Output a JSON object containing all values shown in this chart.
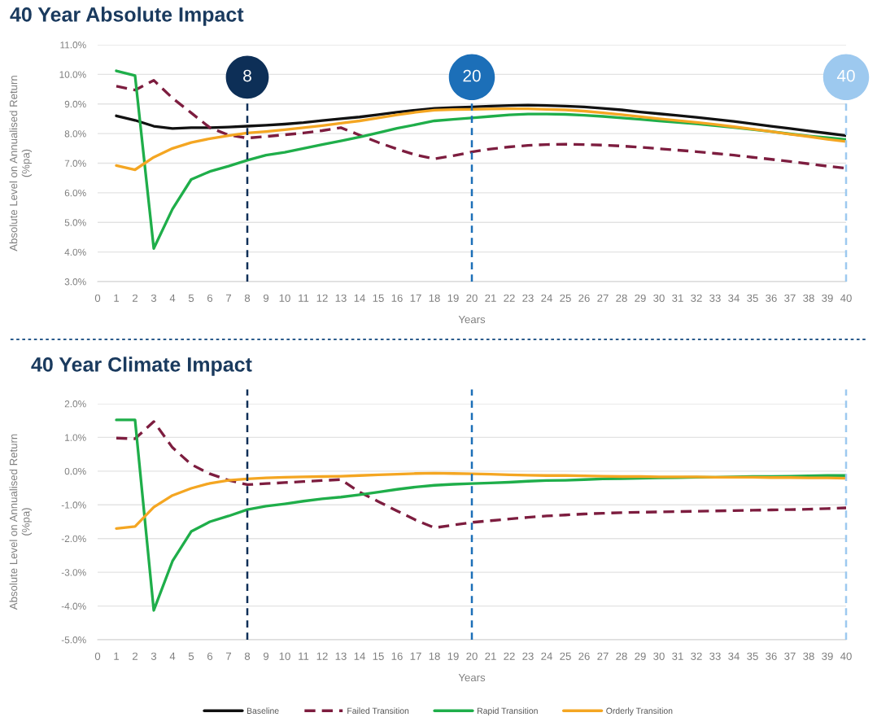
{
  "chart_data": [
    {
      "type": "line",
      "title": "40 Year Absolute Impact",
      "xlabel": "Years",
      "ylabel": "Absolute Level on Annualised Return\n(%pa)",
      "x": [
        1,
        2,
        3,
        4,
        5,
        6,
        7,
        8,
        9,
        10,
        11,
        12,
        13,
        14,
        15,
        16,
        17,
        18,
        19,
        20,
        21,
        22,
        23,
        24,
        25,
        26,
        27,
        28,
        29,
        30,
        31,
        32,
        33,
        34,
        35,
        36,
        37,
        38,
        39,
        40
      ],
      "series": [
        {
          "name": "Baseline",
          "color": "#111111",
          "line_style": "solid",
          "values": [
            8.6,
            8.45,
            8.25,
            8.17,
            8.2,
            8.2,
            8.22,
            8.25,
            8.28,
            8.32,
            8.37,
            8.44,
            8.5,
            8.56,
            8.64,
            8.72,
            8.79,
            8.85,
            8.88,
            8.9,
            8.93,
            8.95,
            8.96,
            8.95,
            8.93,
            8.9,
            8.85,
            8.8,
            8.73,
            8.67,
            8.61,
            8.55,
            8.48,
            8.41,
            8.33,
            8.25,
            8.17,
            8.09,
            8.01,
            7.93
          ]
        },
        {
          "name": "Failed Transition",
          "color": "#7d1d3f",
          "line_style": "dashed",
          "values": [
            9.6,
            9.47,
            9.8,
            9.2,
            8.7,
            8.2,
            7.95,
            7.85,
            7.9,
            7.96,
            8.02,
            8.1,
            8.2,
            7.95,
            7.7,
            7.48,
            7.28,
            7.15,
            7.25,
            7.38,
            7.48,
            7.55,
            7.6,
            7.63,
            7.64,
            7.63,
            7.61,
            7.58,
            7.54,
            7.49,
            7.44,
            7.39,
            7.33,
            7.27,
            7.2,
            7.13,
            7.06,
            6.98,
            6.9,
            6.83
          ]
        },
        {
          "name": "Rapid Transition",
          "color": "#1fae4a",
          "line_style": "solid",
          "values": [
            10.12,
            9.96,
            4.12,
            5.45,
            6.45,
            6.72,
            6.9,
            7.1,
            7.27,
            7.37,
            7.5,
            7.63,
            7.75,
            7.88,
            8.03,
            8.18,
            8.3,
            8.43,
            8.48,
            8.53,
            8.58,
            8.63,
            8.66,
            8.66,
            8.65,
            8.62,
            8.58,
            8.53,
            8.48,
            8.43,
            8.38,
            8.33,
            8.27,
            8.21,
            8.14,
            8.07,
            7.99,
            7.92,
            7.86,
            7.8
          ]
        },
        {
          "name": "Orderly Transition",
          "color": "#f4a622",
          "line_style": "solid",
          "values": [
            6.92,
            6.78,
            7.2,
            7.5,
            7.7,
            7.83,
            7.93,
            8.02,
            8.07,
            8.13,
            8.2,
            8.27,
            8.35,
            8.43,
            8.53,
            8.63,
            8.72,
            8.79,
            8.81,
            8.82,
            8.83,
            8.84,
            8.84,
            8.82,
            8.8,
            8.76,
            8.7,
            8.64,
            8.57,
            8.5,
            8.44,
            8.38,
            8.31,
            8.23,
            8.15,
            8.07,
            7.98,
            7.9,
            7.81,
            7.73
          ]
        }
      ],
      "xlim": [
        0,
        40
      ],
      "xticks": [
        0,
        1,
        2,
        3,
        4,
        5,
        6,
        7,
        8,
        9,
        10,
        11,
        12,
        13,
        14,
        15,
        16,
        17,
        18,
        19,
        20,
        21,
        22,
        23,
        24,
        25,
        26,
        27,
        28,
        29,
        30,
        31,
        32,
        33,
        34,
        35,
        36,
        37,
        38,
        39,
        40
      ],
      "ylim": [
        3,
        11
      ],
      "yticks": [
        {
          "value": 3,
          "label": "3.0%"
        },
        {
          "value": 4,
          "label": "4.0%"
        },
        {
          "value": 5,
          "label": "5.0%"
        },
        {
          "value": 6,
          "label": "6.0%"
        },
        {
          "value": 7,
          "label": "7.0%"
        },
        {
          "value": 8,
          "label": "8.0%"
        },
        {
          "value": 9,
          "label": "9.0%"
        },
        {
          "value": 10,
          "label": "10.0%"
        },
        {
          "value": 11,
          "label": "11.0%"
        }
      ],
      "grid": "y",
      "legend": "bottom",
      "ref_lines": [
        {
          "axis": "x",
          "value": 8,
          "label": "8",
          "color": "#0d2f57",
          "line_style": "dashed"
        },
        {
          "axis": "x",
          "value": 20,
          "label": "20",
          "color": "#1c6fb8",
          "line_style": "dashed"
        },
        {
          "axis": "x",
          "value": 40,
          "label": "40",
          "color": "#9dc9ef",
          "line_style": "dashed"
        }
      ]
    },
    {
      "type": "line",
      "title": "40 Year Climate Impact",
      "xlabel": "Years",
      "ylabel": "Absolute Level on Annualised Return\n(%pa)",
      "x": [
        1,
        2,
        3,
        4,
        5,
        6,
        7,
        8,
        9,
        10,
        11,
        12,
        13,
        14,
        15,
        16,
        17,
        18,
        19,
        20,
        21,
        22,
        23,
        24,
        25,
        26,
        27,
        28,
        29,
        30,
        31,
        32,
        33,
        34,
        35,
        36,
        37,
        38,
        39,
        40
      ],
      "series": [
        {
          "color": "#7d1d3f",
          "line_style": "dashed",
          "values": [
            0.98,
            0.96,
            1.47,
            0.7,
            0.2,
            -0.08,
            -0.27,
            -0.4,
            -0.37,
            -0.34,
            -0.31,
            -0.28,
            -0.25,
            -0.62,
            -0.9,
            -1.18,
            -1.45,
            -1.68,
            -1.6,
            -1.52,
            -1.47,
            -1.42,
            -1.37,
            -1.33,
            -1.3,
            -1.27,
            -1.25,
            -1.23,
            -1.22,
            -1.21,
            -1.2,
            -1.19,
            -1.18,
            -1.17,
            -1.16,
            -1.15,
            -1.14,
            -1.13,
            -1.11,
            -1.09
          ]
        },
        {
          "color": "#1fae4a",
          "line_style": "solid",
          "values": [
            1.52,
            1.52,
            -4.13,
            -2.67,
            -1.79,
            -1.5,
            -1.33,
            -1.14,
            -1.04,
            -0.97,
            -0.89,
            -0.82,
            -0.77,
            -0.7,
            -0.62,
            -0.54,
            -0.47,
            -0.42,
            -0.39,
            -0.37,
            -0.35,
            -0.33,
            -0.3,
            -0.28,
            -0.27,
            -0.25,
            -0.23,
            -0.22,
            -0.21,
            -0.2,
            -0.19,
            -0.18,
            -0.18,
            -0.17,
            -0.16,
            -0.16,
            -0.15,
            -0.14,
            -0.13,
            -0.13
          ]
        },
        {
          "color": "#f4a622",
          "line_style": "solid",
          "values": [
            -1.7,
            -1.64,
            -1.07,
            -0.72,
            -0.51,
            -0.36,
            -0.27,
            -0.23,
            -0.2,
            -0.18,
            -0.17,
            -0.16,
            -0.15,
            -0.13,
            -0.11,
            -0.09,
            -0.07,
            -0.06,
            -0.07,
            -0.08,
            -0.09,
            -0.11,
            -0.12,
            -0.13,
            -0.13,
            -0.14,
            -0.15,
            -0.16,
            -0.16,
            -0.17,
            -0.17,
            -0.17,
            -0.18,
            -0.18,
            -0.18,
            -0.19,
            -0.19,
            -0.2,
            -0.2,
            -0.21
          ]
        }
      ],
      "xlim": [
        0,
        40
      ],
      "xticks": [
        0,
        1,
        2,
        3,
        4,
        5,
        6,
        7,
        8,
        9,
        10,
        11,
        12,
        13,
        14,
        15,
        16,
        17,
        18,
        19,
        20,
        21,
        22,
        23,
        24,
        25,
        26,
        27,
        28,
        29,
        30,
        31,
        32,
        33,
        34,
        35,
        36,
        37,
        38,
        39,
        40
      ],
      "ylim": [
        -5,
        2
      ],
      "yticks": [
        {
          "value": -5,
          "label": "-5.0%"
        },
        {
          "value": -4,
          "label": "-4.0%"
        },
        {
          "value": -3,
          "label": "-3.0%"
        },
        {
          "value": -2,
          "label": "-2.0%"
        },
        {
          "value": -1,
          "label": "-1.0%"
        },
        {
          "value": 0,
          "label": "0.0%"
        },
        {
          "value": 1,
          "label": "1.0%"
        },
        {
          "value": 2,
          "label": "2.0%"
        }
      ],
      "grid": "y",
      "ref_lines": [
        {
          "axis": "x",
          "value": 8,
          "color": "#0d2f57",
          "line_style": "dashed"
        },
        {
          "axis": "x",
          "value": 20,
          "color": "#1c6fb8",
          "line_style": "dashed"
        },
        {
          "axis": "x",
          "value": 40,
          "color": "#9dc9ef",
          "line_style": "dashed"
        }
      ]
    }
  ]
}
